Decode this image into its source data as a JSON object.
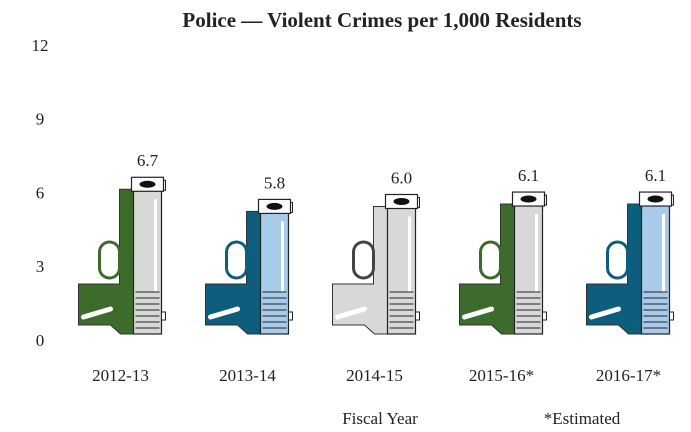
{
  "chart_data": {
    "type": "pictogram-bar",
    "title": "Police — Violent Crimes per 1,000 Residents",
    "categories": [
      "2012-13",
      "2013-14",
      "2014-15",
      "2015-16*",
      "2016-17*"
    ],
    "values": [
      6.7,
      5.8,
      6.0,
      6.1,
      6.1
    ],
    "value_labels": [
      "6.7",
      "5.8",
      "6.0",
      "6.1",
      "6.1"
    ],
    "colors": [
      "#3c6b2c",
      "#0c5e7c",
      "#d8d8d8",
      "#3c6b2c",
      "#0c5e7c"
    ],
    "barrel_colors": [
      "#d8d8d8",
      "#a8cbe9",
      "#d8d8d8",
      "#d8d8d8",
      "#a8cbe9"
    ],
    "ylim": [
      0,
      12
    ],
    "yticks": [
      0,
      3,
      6,
      9,
      12
    ],
    "grid": false,
    "xlabel": "Fiscal Year",
    "note": "*Estimated"
  }
}
